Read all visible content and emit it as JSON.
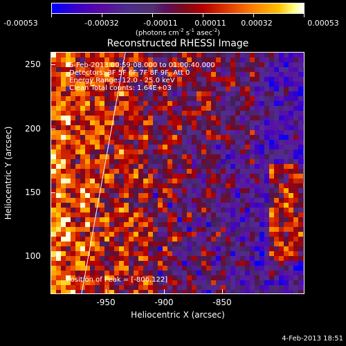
{
  "colorbar": {
    "labels": [
      "-0.00053",
      "-0.00032",
      "-0.00011",
      "0.00011",
      "0.00032",
      "0.00053"
    ],
    "units_main": "(photons cm",
    "units_sup1": "-2",
    "units_mid": " s",
    "units_sup2": "-1",
    "units_mid2": " asec",
    "units_sup3": "-2",
    "units_end": ")"
  },
  "plot": {
    "title": "Reconstructed RHESSI Image",
    "info_lines": [
      "5-Feb-2013 00:59:08.000 to 01:00:40.000",
      "Detectors: 3F 5F 6F 7F 8F 9F, Att 0",
      "Energy Range: 12.0 - 25.0 keV",
      "Clean    Total counts: 1.64E+03"
    ],
    "peak_label": "Position of Peak = [-806,122]",
    "xlabel": "Heliocentric X (arcsec)",
    "ylabel": "Heliocentric Y (arcsec)",
    "x_ticks": [
      "-950",
      "-900",
      "-850"
    ],
    "y_ticks": [
      "250",
      "200",
      "150",
      "100"
    ]
  },
  "footer": {
    "timestamp": "4-Feb-2013 18:51"
  }
}
